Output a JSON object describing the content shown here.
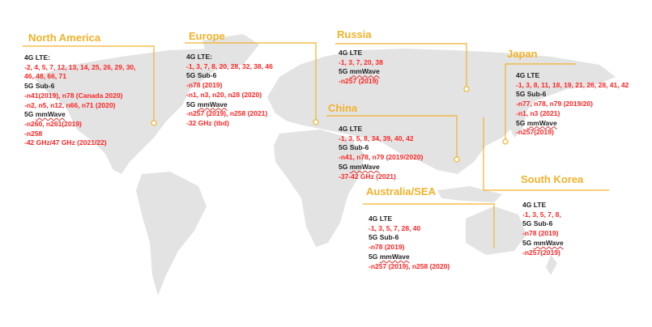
{
  "colors": {
    "accent": "#f2b22a",
    "value": "#ff2424",
    "land": "#e3e3e3"
  },
  "regions": {
    "north_america": {
      "title": "North America",
      "lines": [
        {
          "t": "4G LTE:",
          "k": "lbl"
        },
        {
          "t": "-2, 4, 5, 7, 12, 13, 14, 25, 26, 29, 30,",
          "k": "val"
        },
        {
          "t": " 46, 48, 66, 71",
          "k": "val"
        },
        {
          "t": "5G Sub-6",
          "k": "lbl"
        },
        {
          "t": "-n41(2019), n78 (Canada 2020)",
          "k": "val"
        },
        {
          "t": "-n2, n5, n12, n66, n71 (2020)",
          "k": "val"
        },
        {
          "t": "5G mmWave",
          "k": "lbl"
        },
        {
          "t": "-n260, n261(2019)",
          "k": "val"
        },
        {
          "t": "-n258",
          "k": "val"
        },
        {
          "t": "-42 GHz/47 GHz (2021/22)",
          "k": "val"
        }
      ]
    },
    "europe": {
      "title": "Europe",
      "lines": [
        {
          "t": "4G LTE:",
          "k": "lbl"
        },
        {
          "t": "-1, 3, 7, 8, 20, 28, 32, 38, 46",
          "k": "val"
        },
        {
          "t": "5G Sub-6",
          "k": "lbl"
        },
        {
          "t": "-n78 (2019)",
          "k": "val"
        },
        {
          "t": "-n1, n3, n20, n28 (2020)",
          "k": "val"
        },
        {
          "t": "5G mmWave",
          "k": "lbl"
        },
        {
          "t": "-n257 (2019), n258 (2021)",
          "k": "val"
        },
        {
          "t": "-32 GHz (tbd)",
          "k": "val"
        }
      ]
    },
    "russia": {
      "title": "Russia",
      "lines": [
        {
          "t": "4G LTE",
          "k": "lbl"
        },
        {
          "t": "-1, 3, 7, 20, 38",
          "k": "val"
        },
        {
          "t": "5G mmWave",
          "k": "lbl"
        },
        {
          "t": "-n257 (2019)",
          "k": "val"
        }
      ]
    },
    "china": {
      "title": "China",
      "lines": [
        {
          "t": "4G LTE",
          "k": "lbl"
        },
        {
          "t": "-1, 3, 5, 8, 34, 39, 40, 42",
          "k": "val"
        },
        {
          "t": "5G Sub-6",
          "k": "lbl"
        },
        {
          "t": "-n41, n78, n79 (2019/2020)",
          "k": "val"
        },
        {
          "t": "5G mmWave",
          "k": "lbl"
        },
        {
          "t": "-37-42 GHz (2021)",
          "k": "val"
        }
      ]
    },
    "japan": {
      "title": "Japan",
      "lines": [
        {
          "t": "4G LTE",
          "k": "lbl"
        },
        {
          "t": "-1, 3, 8, 11, 18, 19, 21, 26, 28, 41, 42",
          "k": "val"
        },
        {
          "t": "5G Sub-6",
          "k": "lbl"
        },
        {
          "t": "-n77, n78, n79 (2019/20)",
          "k": "val"
        },
        {
          "t": "-n1, n3 (2021)",
          "k": "val"
        },
        {
          "t": "5G mmWave",
          "k": "lbl"
        },
        {
          "t": "-n257(2019)",
          "k": "val"
        }
      ]
    },
    "australia_sea": {
      "title": "Australia/SEA",
      "lines": [
        {
          "t": "4G LTE",
          "k": "lbl"
        },
        {
          "t": "-1, 3, 5, 7, 28, 40",
          "k": "val"
        },
        {
          "t": "5G Sub-6",
          "k": "lbl"
        },
        {
          "t": "-n78 (2019)",
          "k": "val"
        },
        {
          "t": "5G mmWave",
          "k": "lbl"
        },
        {
          "t": "-n257 (2019), n258 (2020)",
          "k": "val"
        }
      ]
    },
    "south_korea": {
      "title": "South Korea",
      "lines": [
        {
          "t": "4G LTE",
          "k": "lbl"
        },
        {
          "t": "-1, 3, 5, 7, 8,",
          "k": "val"
        },
        {
          "t": "5G Sub-6",
          "k": "lbl"
        },
        {
          "t": "-n78 (2019)",
          "k": "val"
        },
        {
          "t": "5G mmWave",
          "k": "lbl"
        },
        {
          "t": "-n257(2019)",
          "k": "val"
        }
      ]
    }
  }
}
